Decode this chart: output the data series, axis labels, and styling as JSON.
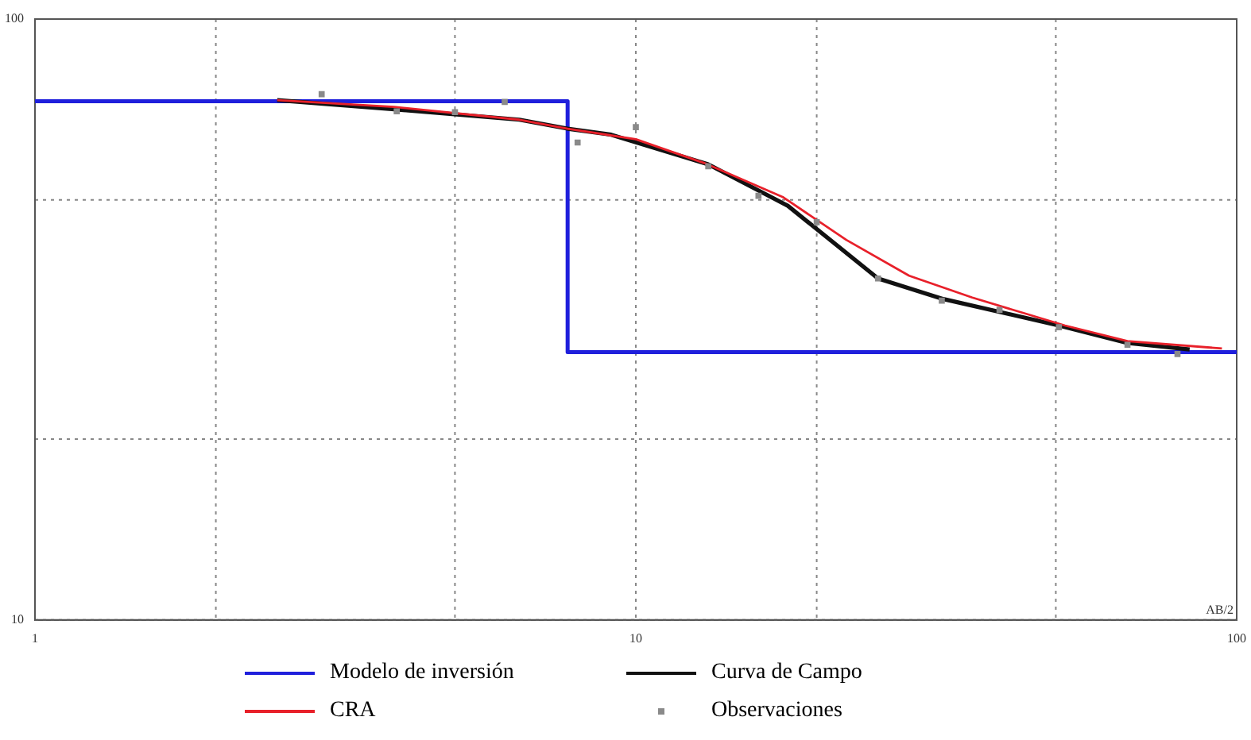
{
  "chart_data": {
    "type": "line",
    "xlabel": "AB/2",
    "log": "xy",
    "grid": true,
    "line_style": "solid",
    "marker": "none",
    "legend": "bottom",
    "xlim": [
      1,
      100
    ],
    "xticks": [
      1,
      {
        "value": 2,
        "label": null
      },
      {
        "value": 5,
        "label": null
      },
      10,
      {
        "value": 20,
        "label": null
      },
      {
        "value": 50,
        "label": null
      },
      100
    ],
    "ylim": [
      10,
      100
    ],
    "yticks": [
      10,
      {
        "value": 20,
        "label": null
      },
      {
        "value": 50,
        "label": null
      },
      100
    ],
    "series": [
      {
        "name": "Modelo de inversión",
        "type": "step",
        "color": "#1f1fdc",
        "x": [
          1,
          7.7,
          100
        ],
        "values": [
          73,
          27.9,
          27.9
        ]
      },
      {
        "name": "Curva de Campo",
        "type": "line",
        "color": "#111111",
        "x": [
          2.53,
          4,
          6.4,
          7.7,
          9.1,
          13.2,
          17.9,
          25.3,
          32.5,
          50.6,
          65.8,
          83.5
        ],
        "values": [
          73.3,
          70.7,
          68,
          65.7,
          64.2,
          57.3,
          48.9,
          37,
          34.2,
          30.9,
          28.9,
          28.2
        ]
      },
      {
        "name": "CRA",
        "type": "line",
        "color": "#e8202a",
        "x": [
          2.53,
          3.96,
          6.4,
          7.7,
          10,
          13,
          17.6,
          22.4,
          28.5,
          36.3,
          51.8,
          65.8,
          94.5
        ],
        "values": [
          73.3,
          71.4,
          68,
          65.7,
          63.1,
          57.6,
          50.5,
          42.9,
          37.4,
          34.4,
          30.9,
          29.1,
          28.3
        ]
      },
      {
        "name": "Observaciones",
        "type": "scatter",
        "marker": "square",
        "color": "#8a8a8a",
        "x": [
          3,
          4,
          5,
          6.05,
          8,
          10,
          13.2,
          16,
          20,
          25.3,
          32.3,
          40.3,
          50.6,
          65.8,
          79.7
        ],
        "values": [
          75,
          70.2,
          70,
          72.8,
          62.3,
          66.1,
          56.9,
          50.8,
          45.9,
          37,
          34,
          32.8,
          30.7,
          28.7,
          27.7
        ]
      }
    ]
  }
}
